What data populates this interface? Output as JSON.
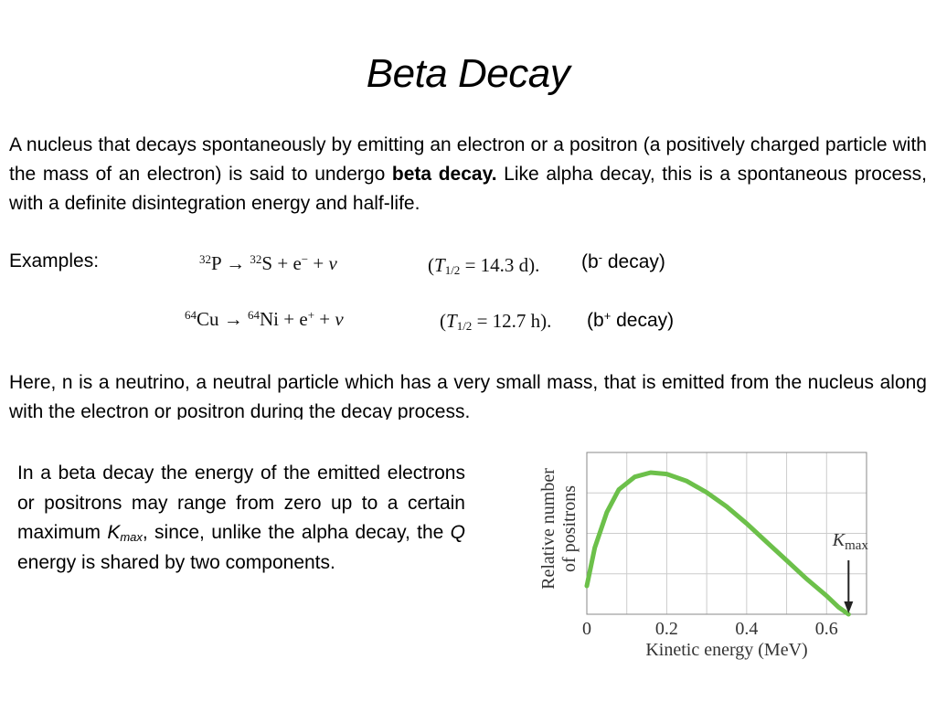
{
  "title": "Beta Decay",
  "intro": {
    "before": "A nucleus that decays spontaneously by emitting an electron or a positron (a positively charged particle with the mass of an electron) is said to undergo ",
    "bold": "beta decay.",
    "after": " Like alpha decay, this is a spontaneous process, with a definite disintegration energy and half-life."
  },
  "examples_label": "Examples:",
  "reaction1": {
    "parent_mass": "32",
    "parent": "P",
    "arrow": "→",
    "daughter_mass": "32",
    "daughter": "S",
    "plus1": "+",
    "particle": "e",
    "particle_charge": "−",
    "plus2": "+",
    "neutrino": "ν",
    "half_life_symbol": "T",
    "half_life_sub": "1/2",
    "half_life_value": "= 14.3 d).",
    "decay_prefix": "(b",
    "decay_sup": "-",
    "decay_suffix": " decay)"
  },
  "reaction2": {
    "parent_mass": "64",
    "parent": "Cu",
    "arrow": "→",
    "daughter_mass": "64",
    "daughter": "Ni",
    "plus1": "+",
    "particle": "e",
    "particle_charge": "+",
    "plus2": "+",
    "neutrino": "ν",
    "half_life_symbol": "T",
    "half_life_sub": "1/2",
    "half_life_value": "= 12.7 h).",
    "decay_prefix": "(b",
    "decay_sup": "+",
    "decay_suffix": " decay)"
  },
  "neutrino_text": "Here, n is a neutrino, a neutral particle which has a very small mass, that is emitted from the nucleus along with the electron or positron during the decay process.",
  "energy_text": {
    "part1": "In a beta decay the energy of the emitted electrons or positrons may range from zero up to a certain maximum ",
    "kmax_k": "K",
    "kmax_sub": "max",
    "part2": ", since, unlike the alpha decay, the ",
    "q": "Q",
    "part3": " energy is shared by two components."
  },
  "chart_data": {
    "type": "line",
    "xlabel": "Kinetic energy (MeV)",
    "ylabel": "Relative number of positrons",
    "xlim": [
      0,
      0.7
    ],
    "x_ticks": [
      "0",
      "0.2",
      "0.4",
      "0.6"
    ],
    "x_tick_values": [
      0,
      0.2,
      0.4,
      0.6
    ],
    "grid": true,
    "line_color": "#6cc04a",
    "series": [
      {
        "x": [
          0,
          0.02,
          0.05,
          0.08,
          0.12,
          0.16,
          0.2,
          0.25,
          0.3,
          0.35,
          0.4,
          0.45,
          0.5,
          0.55,
          0.6,
          0.63,
          0.655
        ],
        "y": [
          0.2,
          0.47,
          0.72,
          0.88,
          0.97,
          1.0,
          0.99,
          0.94,
          0.86,
          0.76,
          0.64,
          0.51,
          0.38,
          0.25,
          0.13,
          0.05,
          0.0
        ]
      }
    ],
    "annotation": {
      "k": "K",
      "sub": "max",
      "x": 0.655
    }
  }
}
